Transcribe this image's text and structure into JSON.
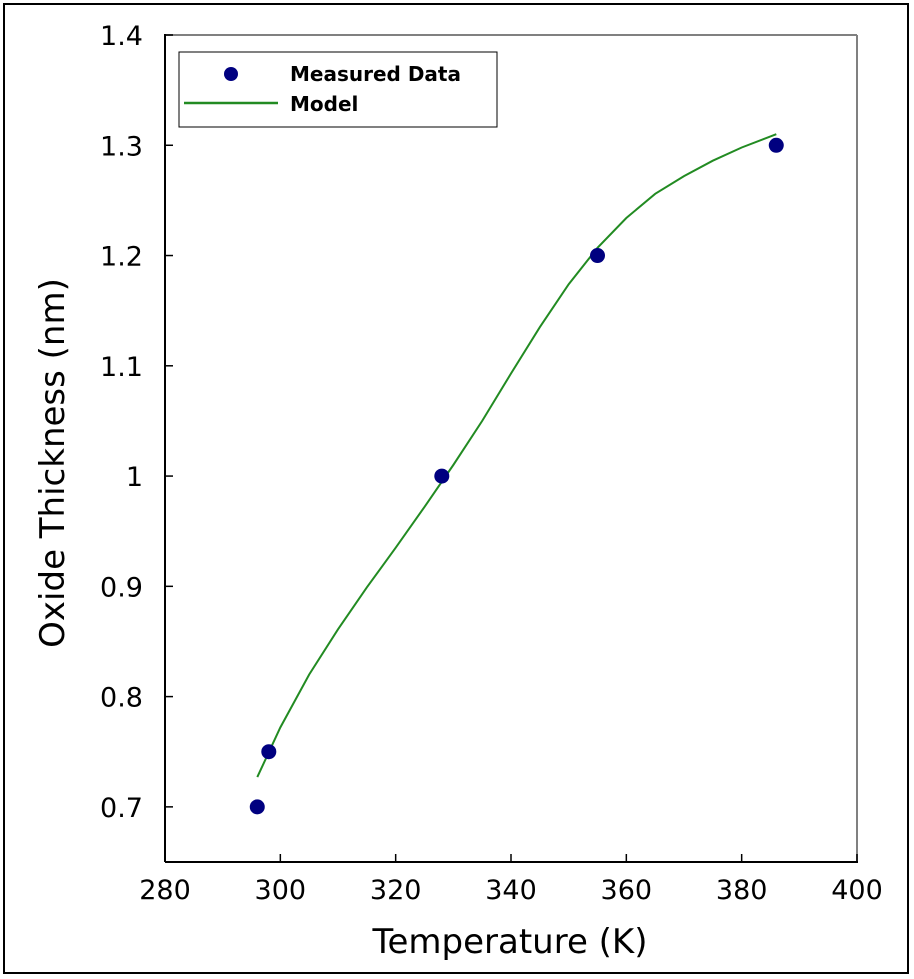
{
  "chart_data": {
    "type": "scatter",
    "xlabel": "Temperature (K)",
    "ylabel": "Oxide Thickness (nm)",
    "xlim": [
      280,
      400
    ],
    "ylim": [
      0.65,
      1.4
    ],
    "xticks": [
      280,
      300,
      320,
      340,
      360,
      380,
      400
    ],
    "yticks": [
      0.7,
      0.8,
      0.9,
      1.0,
      1.1,
      1.2,
      1.3,
      1.4
    ],
    "ytick_labels": [
      "0.7",
      "0.8",
      "0.9",
      "1",
      "1.1",
      "1.2",
      "1.3",
      "1.4"
    ],
    "grid": false,
    "legend_position": "top-left",
    "series": [
      {
        "name": "Measured Data",
        "kind": "markers",
        "color": "#000080",
        "x": [
          296,
          298,
          328,
          355,
          386
        ],
        "y": [
          0.7,
          0.75,
          1.0,
          1.2,
          1.3
        ]
      },
      {
        "name": "Model",
        "kind": "line",
        "color": "#228B22",
        "x": [
          296,
          300,
          305,
          310,
          315,
          320,
          325,
          330,
          335,
          340,
          345,
          350,
          355,
          360,
          365,
          370,
          375,
          380,
          386
        ],
        "y": [
          0.727,
          0.772,
          0.82,
          0.861,
          0.899,
          0.935,
          0.972,
          1.01,
          1.05,
          1.093,
          1.135,
          1.174,
          1.207,
          1.234,
          1.256,
          1.272,
          1.286,
          1.298,
          1.31
        ]
      }
    ]
  }
}
